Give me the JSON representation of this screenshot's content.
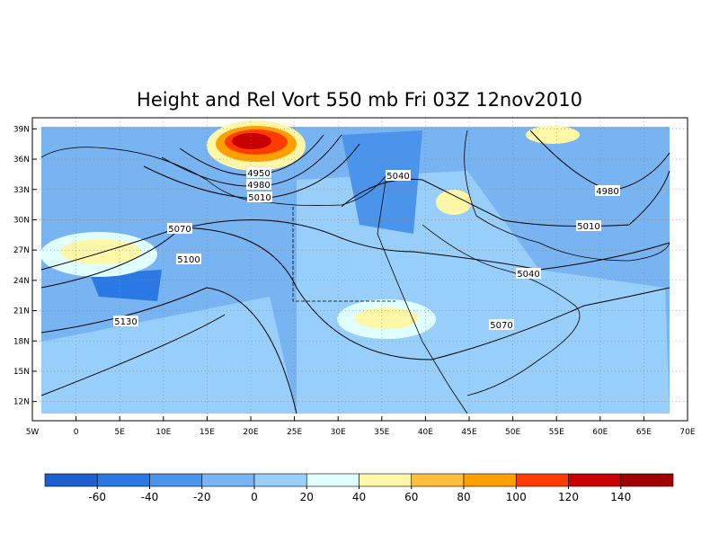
{
  "title": "Height and Rel Vort 550 mb Fri 03Z 12nov2010",
  "xlim": [
    -5,
    70
  ],
  "ylim": [
    10.1,
    40.1
  ],
  "lon_ticks": [
    {
      "value": -5,
      "label": "5W"
    },
    0,
    {
      "value": 5,
      "label": "5E"
    },
    {
      "value": 10,
      "label": "10E"
    },
    {
      "value": 15,
      "label": "15E"
    },
    {
      "value": 20,
      "label": "20E"
    },
    {
      "value": 25,
      "label": "25E"
    },
    {
      "value": 30,
      "label": "30E"
    },
    {
      "value": 35,
      "label": "35E"
    },
    {
      "value": 40,
      "label": "40E"
    },
    {
      "value": 45,
      "label": "45E"
    },
    {
      "value": 50,
      "label": "50E"
    },
    {
      "value": 55,
      "label": "55E"
    },
    {
      "value": 60,
      "label": "60E"
    },
    {
      "value": 65,
      "label": "65E"
    },
    {
      "value": 70,
      "label": "70E"
    }
  ],
  "lat_ticks": [
    {
      "value": 39,
      "label": "39N"
    },
    {
      "value": 36,
      "label": "36N"
    },
    {
      "value": 33,
      "label": "33N"
    },
    {
      "value": 30,
      "label": "30N"
    },
    {
      "value": 27,
      "label": "27N"
    },
    {
      "value": 24,
      "label": "24N"
    },
    {
      "value": 21,
      "label": "21N"
    },
    {
      "value": 18,
      "label": "18N"
    },
    {
      "value": 15,
      "label": "15N"
    },
    {
      "value": 12,
      "label": "12N"
    }
  ],
  "contour_labels": [
    4950,
    4980,
    5010,
    5040,
    5070,
    5100,
    5130,
    4980,
    5010,
    5040,
    5070
  ],
  "colorbar": {
    "levels": [
      -60,
      -40,
      -20,
      0,
      20,
      40,
      60,
      80,
      100,
      120,
      140
    ],
    "colors": [
      "#1e5fcf",
      "#2a78e4",
      "#4a94ec",
      "#78b4f2",
      "#98cffa",
      "#e0ffff",
      "#fff7a8",
      "#ffbe3c",
      "#ffa000",
      "#ff3c00",
      "#c80000",
      "#a00000"
    ]
  }
}
